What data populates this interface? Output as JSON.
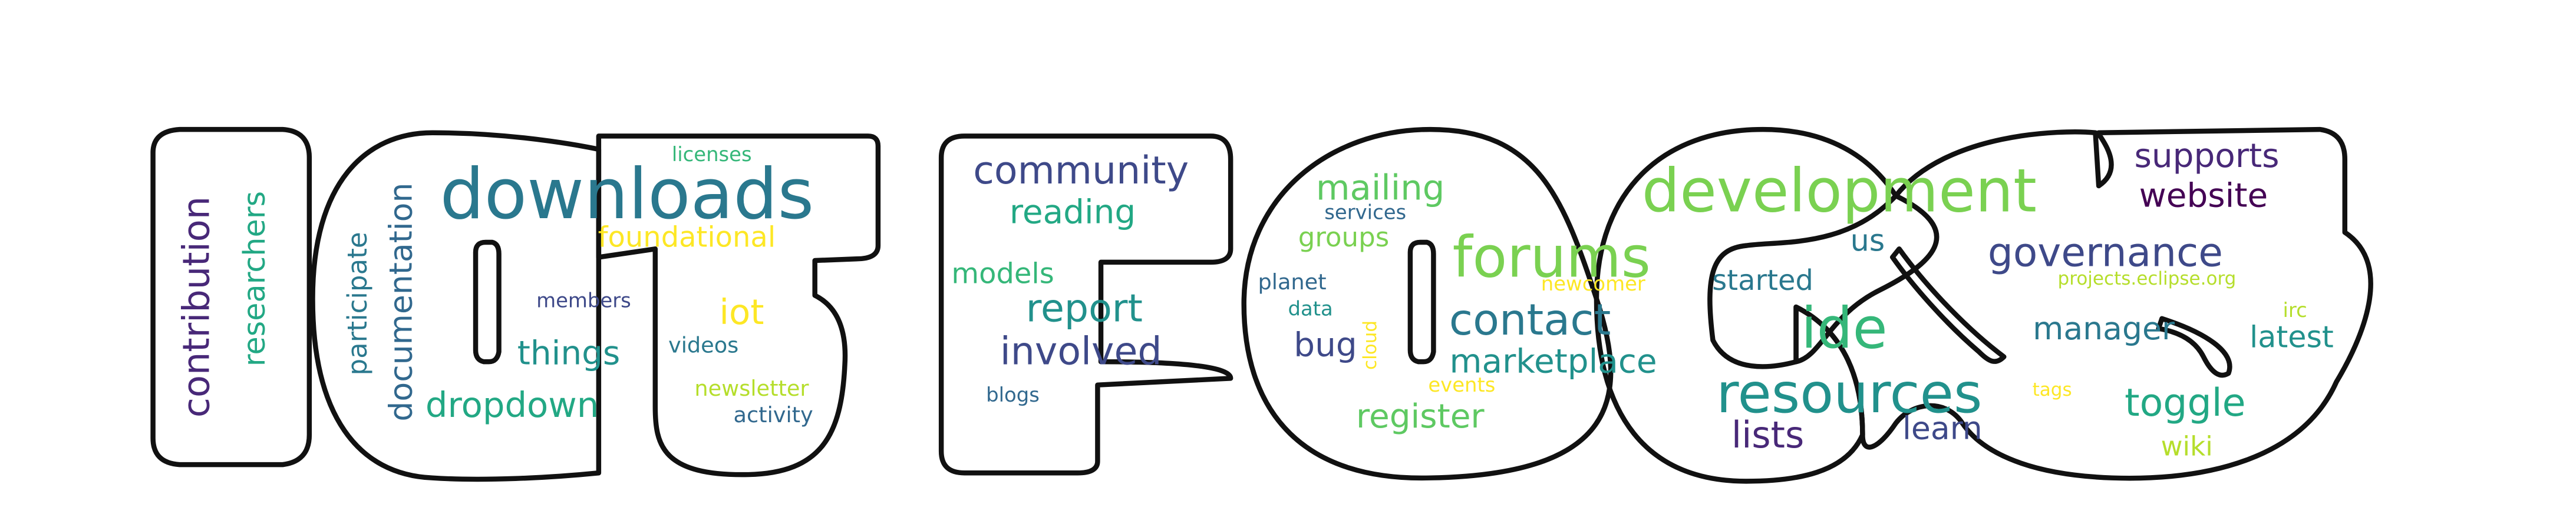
{
  "words": [
    {
      "text": "downloads",
      "color": "#2a788e"
    },
    {
      "text": "development",
      "color": "#7ad151"
    },
    {
      "text": "forums",
      "color": "#7ad151"
    },
    {
      "text": "resources",
      "color": "#21918c"
    },
    {
      "text": "ide",
      "color": "#35b779"
    },
    {
      "text": "contribution",
      "color": "#482878"
    },
    {
      "text": "governance",
      "color": "#3e4989"
    },
    {
      "text": "researchers",
      "color": "#22a884"
    },
    {
      "text": "documentation",
      "color": "#31688e"
    },
    {
      "text": "community",
      "color": "#3e4989"
    },
    {
      "text": "involved",
      "color": "#3e4989"
    },
    {
      "text": "report",
      "color": "#21918c"
    },
    {
      "text": "contact",
      "color": "#2a788e"
    },
    {
      "text": "marketplace",
      "color": "#21918c"
    },
    {
      "text": "toggle",
      "color": "#22a884"
    },
    {
      "text": "website",
      "color": "#440154"
    },
    {
      "text": "supports",
      "color": "#482878"
    },
    {
      "text": "lists",
      "color": "#482878"
    },
    {
      "text": "mailing",
      "color": "#5ec962"
    },
    {
      "text": "reading",
      "color": "#22a884"
    },
    {
      "text": "things",
      "color": "#21918c"
    },
    {
      "text": "dropdown",
      "color": "#22a884"
    },
    {
      "text": "register",
      "color": "#5ec962"
    },
    {
      "text": "learn",
      "color": "#3e4989"
    },
    {
      "text": "manager",
      "color": "#2a788e"
    },
    {
      "text": "latest",
      "color": "#21918c"
    },
    {
      "text": "iot",
      "color": "#fde725"
    },
    {
      "text": "started",
      "color": "#2a788e"
    },
    {
      "text": "models",
      "color": "#35b779"
    },
    {
      "text": "bug",
      "color": "#3e4989"
    },
    {
      "text": "participate",
      "color": "#2a788e"
    },
    {
      "text": "foundational",
      "color": "#fde725"
    },
    {
      "text": "groups",
      "color": "#7ad151"
    },
    {
      "text": "us",
      "color": "#2a788e"
    },
    {
      "text": "wiki",
      "color": "#b5de2b"
    },
    {
      "text": "newsletter",
      "color": "#b5de2b"
    },
    {
      "text": "videos",
      "color": "#2a788e"
    },
    {
      "text": "activity",
      "color": "#31688e"
    },
    {
      "text": "members",
      "color": "#3e4989"
    },
    {
      "text": "licenses",
      "color": "#35b779"
    },
    {
      "text": "blogs",
      "color": "#31688e"
    },
    {
      "text": "planet",
      "color": "#31688e"
    },
    {
      "text": "services",
      "color": "#31688e"
    },
    {
      "text": "data",
      "color": "#21918c"
    },
    {
      "text": "cloud",
      "color": "#fde725"
    },
    {
      "text": "events",
      "color": "#fde725"
    },
    {
      "text": "newcomer",
      "color": "#fde725"
    },
    {
      "text": "projects.eclipse.org",
      "color": "#b5de2b"
    },
    {
      "text": "irc",
      "color": "#b5de2b"
    },
    {
      "text": "tags",
      "color": "#fde725"
    }
  ]
}
